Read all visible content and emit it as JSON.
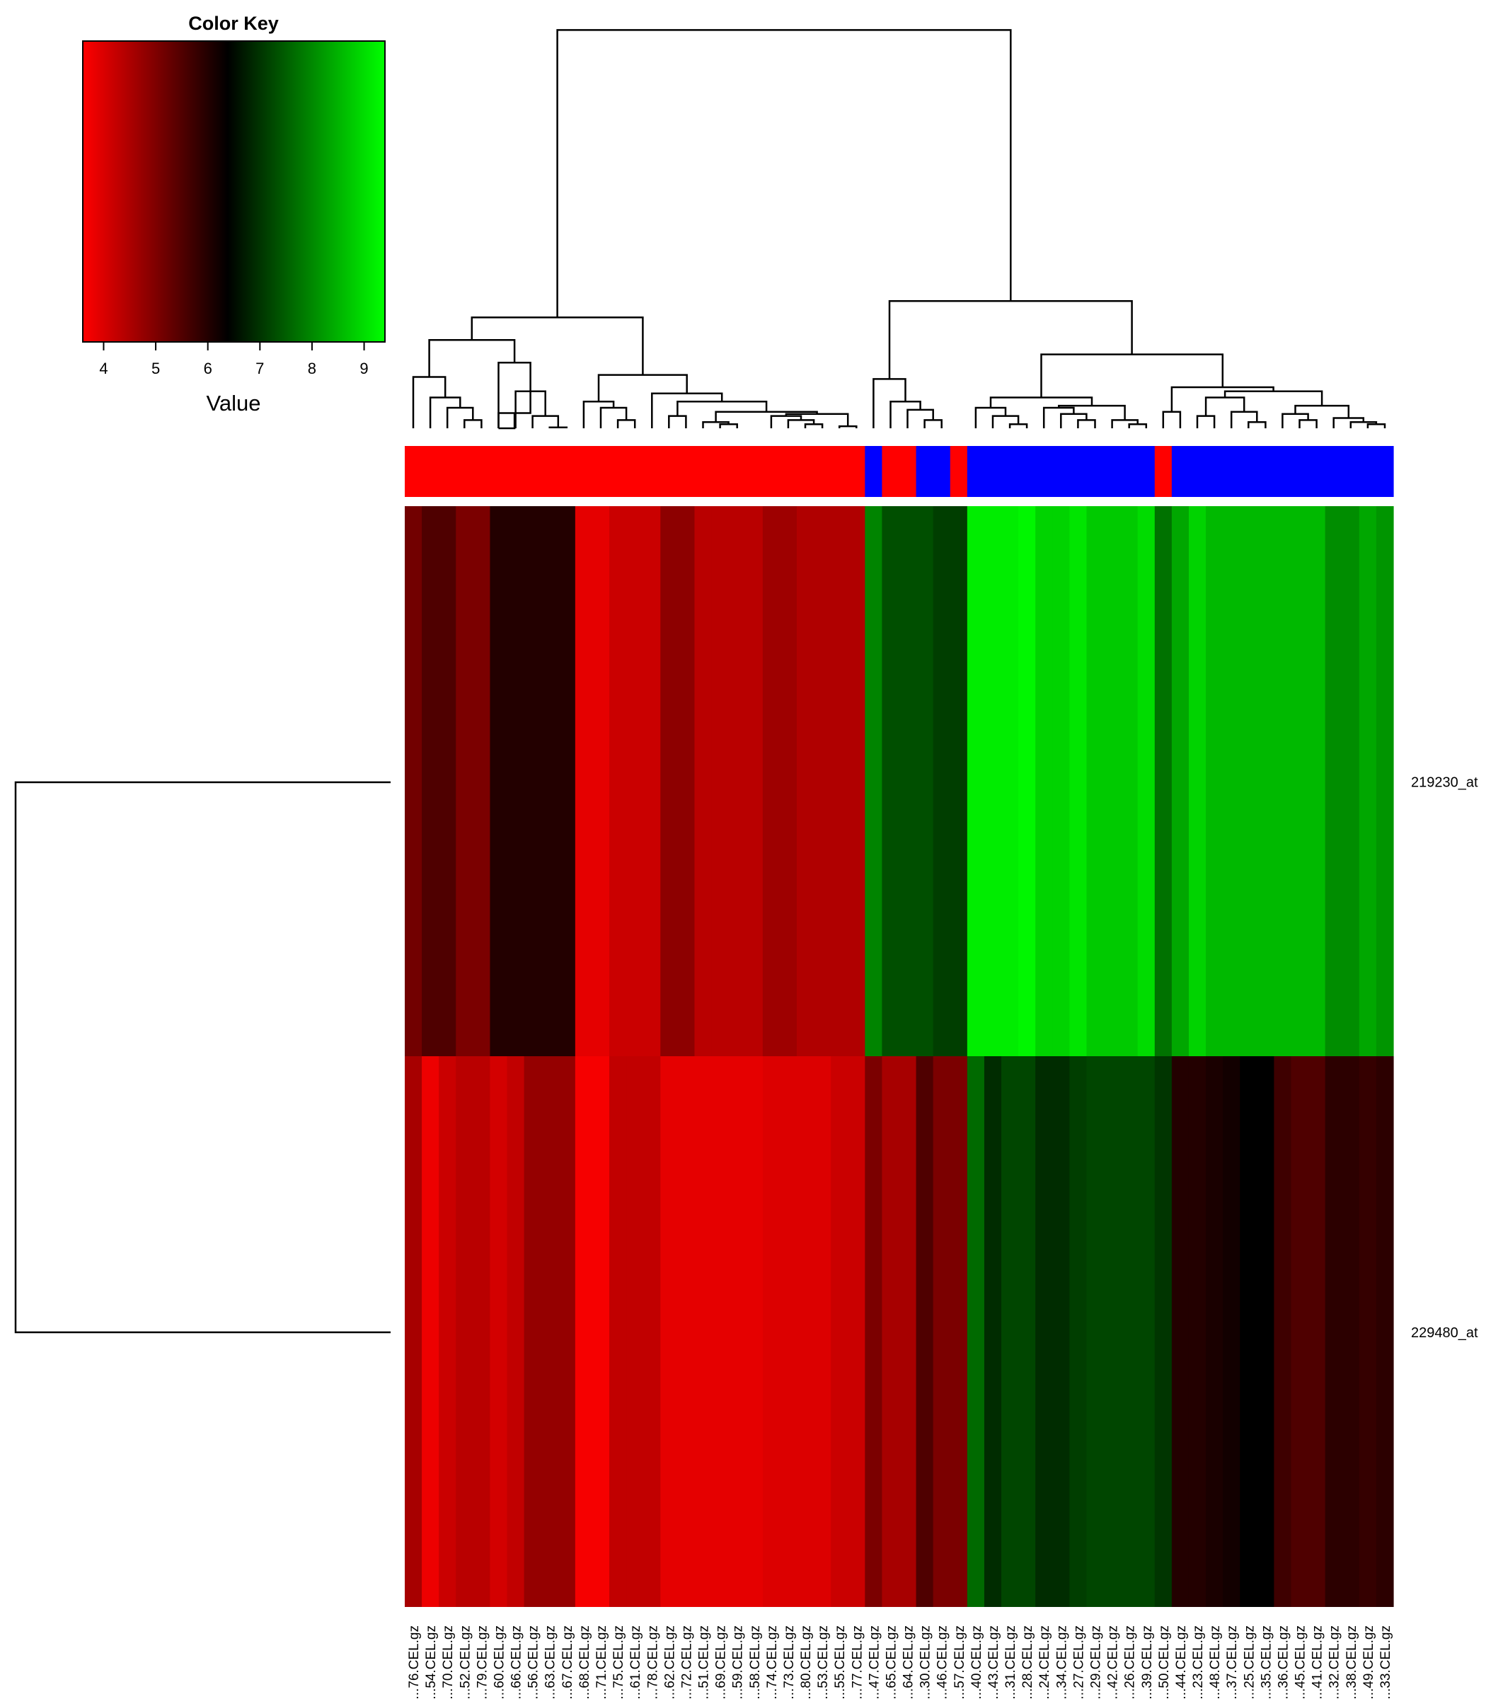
{
  "color_key": {
    "title": "Color Key",
    "label": "Value",
    "ticks": [
      "4",
      "5",
      "6",
      "7",
      "8",
      "9"
    ],
    "colors": [
      "#ff0000",
      "#000000",
      "#00ff00"
    ]
  },
  "chart_data": {
    "type": "heatmap",
    "value_range": [
      3.6,
      9.4
    ],
    "rows": [
      "219230_at",
      "229480_at"
    ],
    "group_colors": {
      "red": "#ff0000",
      "blue": "#0000ff"
    },
    "columns": [
      {
        "label": "GSM...76.CEL.gz",
        "group": "red",
        "values": [
          5.2,
          4.6
        ]
      },
      {
        "label": "GSM...54.CEL.gz",
        "group": "red",
        "values": [
          5.6,
          3.8
        ]
      },
      {
        "label": "GSM...70.CEL.gz",
        "group": "red",
        "values": [
          5.6,
          4.2
        ]
      },
      {
        "label": "GSM...52.CEL.gz",
        "group": "red",
        "values": [
          5.1,
          4.4
        ]
      },
      {
        "label": "GSM...79.CEL.gz",
        "group": "red",
        "values": [
          5.1,
          4.4
        ]
      },
      {
        "label": "GSM...60.CEL.gz",
        "group": "red",
        "values": [
          6.1,
          4.1
        ]
      },
      {
        "label": "GSM...66.CEL.gz",
        "group": "red",
        "values": [
          6.1,
          4.3
        ]
      },
      {
        "label": "GSM...56.CEL.gz",
        "group": "red",
        "values": [
          6.1,
          4.8
        ]
      },
      {
        "label": "GSM...63.CEL.gz",
        "group": "red",
        "values": [
          6.1,
          4.8
        ]
      },
      {
        "label": "GSM...67.CEL.gz",
        "group": "red",
        "values": [
          6.1,
          4.8
        ]
      },
      {
        "label": "GSM...68.CEL.gz",
        "group": "red",
        "values": [
          3.9,
          3.7
        ]
      },
      {
        "label": "GSM...71.CEL.gz",
        "group": "red",
        "values": [
          3.9,
          3.7
        ]
      },
      {
        "label": "GSM...75.CEL.gz",
        "group": "red",
        "values": [
          4.2,
          4.3
        ]
      },
      {
        "label": "GSM...61.CEL.gz",
        "group": "red",
        "values": [
          4.2,
          4.3
        ]
      },
      {
        "label": "GSM...78.CEL.gz",
        "group": "red",
        "values": [
          4.2,
          4.3
        ]
      },
      {
        "label": "GSM...62.CEL.gz",
        "group": "red",
        "values": [
          4.9,
          3.9
        ]
      },
      {
        "label": "GSM...72.CEL.gz",
        "group": "red",
        "values": [
          4.9,
          3.9
        ]
      },
      {
        "label": "GSM...51.CEL.gz",
        "group": "red",
        "values": [
          4.4,
          3.9
        ]
      },
      {
        "label": "GSM...69.CEL.gz",
        "group": "red",
        "values": [
          4.4,
          3.9
        ]
      },
      {
        "label": "GSM...59.CEL.gz",
        "group": "red",
        "values": [
          4.4,
          3.9
        ]
      },
      {
        "label": "GSM...58.CEL.gz",
        "group": "red",
        "values": [
          4.4,
          3.9
        ]
      },
      {
        "label": "GSM...74.CEL.gz",
        "group": "red",
        "values": [
          4.7,
          4.0
        ]
      },
      {
        "label": "GSM...73.CEL.gz",
        "group": "red",
        "values": [
          4.7,
          4.0
        ]
      },
      {
        "label": "GSM...80.CEL.gz",
        "group": "red",
        "values": [
          4.5,
          4.0
        ]
      },
      {
        "label": "GSM...53.CEL.gz",
        "group": "red",
        "values": [
          4.5,
          4.0
        ]
      },
      {
        "label": "GSM...55.CEL.gz",
        "group": "red",
        "values": [
          4.5,
          4.2
        ]
      },
      {
        "label": "GSM...77.CEL.gz",
        "group": "red",
        "values": [
          4.5,
          4.2
        ]
      },
      {
        "label": "GSM...47.CEL.gz",
        "group": "blue",
        "values": [
          8.0,
          5.1
        ]
      },
      {
        "label": "GSM...65.CEL.gz",
        "group": "red",
        "values": [
          7.4,
          4.6
        ]
      },
      {
        "label": "GSM...64.CEL.gz",
        "group": "red",
        "values": [
          7.4,
          4.6
        ]
      },
      {
        "label": "GSM...30.CEL.gz",
        "group": "blue",
        "values": [
          7.4,
          5.6
        ]
      },
      {
        "label": "GSM...46.CEL.gz",
        "group": "blue",
        "values": [
          7.2,
          5.1
        ]
      },
      {
        "label": "GSM...57.CEL.gz",
        "group": "red",
        "values": [
          7.2,
          5.1
        ]
      },
      {
        "label": "GSM...40.CEL.gz",
        "group": "blue",
        "values": [
          9.2,
          7.7
        ]
      },
      {
        "label": "GSM...43.CEL.gz",
        "group": "blue",
        "values": [
          9.2,
          7.0
        ]
      },
      {
        "label": "GSM...31.CEL.gz",
        "group": "blue",
        "values": [
          9.2,
          7.3
        ]
      },
      {
        "label": "GSM...28.CEL.gz",
        "group": "blue",
        "values": [
          9.3,
          7.3
        ]
      },
      {
        "label": "GSM...24.CEL.gz",
        "group": "blue",
        "values": [
          8.9,
          7.0
        ]
      },
      {
        "label": "GSM...34.CEL.gz",
        "group": "blue",
        "values": [
          8.9,
          7.0
        ]
      },
      {
        "label": "GSM...27.CEL.gz",
        "group": "blue",
        "values": [
          9.1,
          7.2
        ]
      },
      {
        "label": "GSM...29.CEL.gz",
        "group": "blue",
        "values": [
          8.8,
          7.3
        ]
      },
      {
        "label": "GSM...42.CEL.gz",
        "group": "blue",
        "values": [
          8.8,
          7.3
        ]
      },
      {
        "label": "GSM...26.CEL.gz",
        "group": "blue",
        "values": [
          8.8,
          7.3
        ]
      },
      {
        "label": "GSM...39.CEL.gz",
        "group": "blue",
        "values": [
          9.0,
          7.3
        ]
      },
      {
        "label": "GSM...50.CEL.gz",
        "group": "red",
        "values": [
          7.8,
          7.1
        ]
      },
      {
        "label": "GSM...44.CEL.gz",
        "group": "blue",
        "values": [
          8.4,
          6.1
        ]
      },
      {
        "label": "GSM...23.CEL.gz",
        "group": "blue",
        "values": [
          8.9,
          6.1
        ]
      },
      {
        "label": "GSM...48.CEL.gz",
        "group": "blue",
        "values": [
          8.6,
          6.2
        ]
      },
      {
        "label": "GSM...37.CEL.gz",
        "group": "blue",
        "values": [
          8.6,
          6.3
        ]
      },
      {
        "label": "GSM...25.CEL.gz",
        "group": "blue",
        "values": [
          8.6,
          6.5
        ]
      },
      {
        "label": "GSM...35.CEL.gz",
        "group": "blue",
        "values": [
          8.6,
          6.5
        ]
      },
      {
        "label": "GSM...36.CEL.gz",
        "group": "blue",
        "values": [
          8.6,
          5.8
        ]
      },
      {
        "label": "GSM...45.CEL.gz",
        "group": "blue",
        "values": [
          8.6,
          5.6
        ]
      },
      {
        "label": "GSM...41.CEL.gz",
        "group": "blue",
        "values": [
          8.6,
          5.6
        ]
      },
      {
        "label": "GSM...32.CEL.gz",
        "group": "blue",
        "values": [
          8.1,
          6.0
        ]
      },
      {
        "label": "GSM...38.CEL.gz",
        "group": "blue",
        "values": [
          8.1,
          6.0
        ]
      },
      {
        "label": "GSM...49.CEL.gz",
        "group": "blue",
        "values": [
          8.4,
          5.9
        ]
      },
      {
        "label": "GSM...33.CEL.gz",
        "group": "blue",
        "values": [
          8.2,
          6.0
        ]
      }
    ]
  }
}
